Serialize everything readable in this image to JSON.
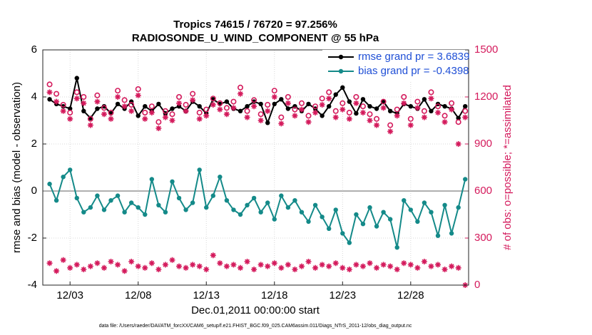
{
  "chart_data": {
    "type": "line",
    "title": "Tropics 74615 / 76720 = 97.256%",
    "subtitle": "RADIOSONDE_U_WIND_COMPONENT @ 55 hPa",
    "xlabel": "Dec.01,2011 00:00:00 start",
    "ylabel": "rmse and bias (model - observation)",
    "y2label": "# of obs: o=possible; *=assimilated",
    "footnote": "data file: /Users/raeder/DAI/ATM_forcXX/CAM6_setup/f.e21.FHIST_BGC.f09_025.CAM6assim.011/Diags_NTrS_2011-12/obs_diag_output.nc",
    "x": [
      0.5,
      1.0,
      1.5,
      2.0,
      2.5,
      3.0,
      3.5,
      4.0,
      4.5,
      5.0,
      5.5,
      6.0,
      6.5,
      7.0,
      7.5,
      8.0,
      8.5,
      9.0,
      9.5,
      10.0,
      10.5,
      11.0,
      11.5,
      12.0,
      12.5,
      13.0,
      13.5,
      14.0,
      14.5,
      15.0,
      15.5,
      16.0,
      16.5,
      17.0,
      17.5,
      18.0,
      18.5,
      19.0,
      19.5,
      20.0,
      20.5,
      21.0,
      21.5,
      22.0,
      22.5,
      23.0,
      23.5,
      24.0,
      24.5,
      25.0,
      25.5,
      26.0,
      26.5,
      27.0,
      27.5,
      28.0,
      28.5,
      29.0,
      29.5,
      30.0,
      30.5,
      31.0
    ],
    "xlim": [
      0,
      31.25
    ],
    "xticks": [
      {
        "value": 2,
        "label": "12/03"
      },
      {
        "value": 7,
        "label": "12/08"
      },
      {
        "value": 12,
        "label": "12/13"
      },
      {
        "value": 17,
        "label": "12/18"
      },
      {
        "value": 22,
        "label": "12/23"
      },
      {
        "value": 27,
        "label": "12/28"
      }
    ],
    "ylim": [
      -4,
      6
    ],
    "yticks": [
      -4,
      -2,
      0,
      2,
      4,
      6
    ],
    "y2lim": [
      0,
      1500
    ],
    "y2ticks": [
      0,
      300,
      600,
      900,
      1200,
      1500
    ],
    "grid": true,
    "legend": "upper right",
    "zero_line_color": "#b0b0b0",
    "series": [
      {
        "name": "rmse grand pr = 3.6839",
        "color": "#000000",
        "marker": "dot",
        "values": [
          3.9,
          3.7,
          3.6,
          3.5,
          4.8,
          3.4,
          3.1,
          3.5,
          3.6,
          3.3,
          3.7,
          3.5,
          3.8,
          3.2,
          3.6,
          3.4,
          3.7,
          3.3,
          3.5,
          3.6,
          3.4,
          3.8,
          3.6,
          3.3,
          3.9,
          3.7,
          3.8,
          3.5,
          3.4,
          3.6,
          3.8,
          3.7,
          2.9,
          3.7,
          3.9,
          3.5,
          3.6,
          3.4,
          3.7,
          3.5,
          3.2,
          3.6,
          4.1,
          4.4,
          3.8,
          3.3,
          3.9,
          3.6,
          3.5,
          3.8,
          3.4,
          3.3,
          3.7,
          3.6,
          3.5,
          3.9,
          3.4,
          3.7,
          3.6,
          3.5,
          3.1,
          3.6
        ]
      },
      {
        "name": "bias grand pr = -0.4398",
        "color": "#148a89",
        "marker": "dot",
        "values": [
          0.3,
          -0.4,
          0.6,
          0.9,
          -0.3,
          -0.9,
          -0.7,
          -0.2,
          -0.8,
          -0.4,
          -0.2,
          -0.9,
          -0.5,
          -0.7,
          -1.0,
          0.5,
          -0.6,
          -0.9,
          0.4,
          -0.3,
          -0.8,
          -0.5,
          0.9,
          -0.7,
          -0.2,
          0.6,
          -0.4,
          -0.8,
          -1.0,
          -0.6,
          -0.3,
          -0.9,
          -0.5,
          -1.2,
          -0.2,
          -0.7,
          -0.4,
          -0.9,
          -1.3,
          -0.6,
          -1.1,
          -1.6,
          -0.8,
          -1.8,
          -2.2,
          -1.0,
          -1.4,
          -0.7,
          -1.5,
          -0.9,
          -1.2,
          -2.4,
          -0.4,
          -0.8,
          -1.3,
          -0.5,
          -0.9,
          -1.9,
          -0.6,
          -1.8,
          -0.7,
          0.5
        ]
      },
      {
        "color": "#d41a5c",
        "axis": "y2",
        "marker": "circle",
        "values": [
          1280,
          1220,
          1150,
          1100,
          1230,
          1200,
          1060,
          1210,
          1130,
          1100,
          1240,
          1180,
          1150,
          1250,
          1100,
          1140,
          1040,
          1110,
          1090,
          1200,
          1150,
          1220,
          1100,
          1120,
          1190,
          1160,
          1130,
          1170,
          1260,
          1110,
          1180,
          1090,
          1150,
          1240,
          1070,
          1200,
          1120,
          1160,
          1080,
          1140,
          1190,
          1230,
          1110,
          1160,
          1100,
          1200,
          1140,
          1090,
          1060,
          1170,
          1020,
          1120,
          1200,
          1060,
          1170,
          1110,
          1230,
          1140,
          1080,
          1160,
          1040,
          1110
        ]
      },
      {
        "color": "#d41a5c",
        "axis": "y2",
        "marker": "star",
        "values": [
          1230,
          1170,
          1110,
          1060,
          1190,
          1160,
          1020,
          1170,
          1090,
          1060,
          1200,
          1140,
          1110,
          1210,
          1060,
          1100,
          1000,
          1070,
          1050,
          1160,
          1110,
          1180,
          1060,
          1080,
          1150,
          1120,
          1090,
          1130,
          1220,
          1070,
          1140,
          1050,
          1110,
          1200,
          1030,
          1160,
          1080,
          1120,
          1040,
          1100,
          1150,
          1190,
          1070,
          1120,
          1060,
          1160,
          1100,
          1050,
          1020,
          1130,
          980,
          1080,
          1160,
          1020,
          1130,
          1070,
          1190,
          1100,
          1040,
          1120,
          900,
          1070
        ]
      },
      {
        "color": "#d41a5c",
        "axis": "y2",
        "marker": "star",
        "values": [
          140,
          90,
          160,
          110,
          130,
          100,
          120,
          140,
          110,
          150,
          130,
          90,
          150,
          120,
          110,
          140,
          100,
          130,
          160,
          120,
          110,
          130,
          120,
          100,
          190,
          140,
          120,
          130,
          110,
          150,
          100,
          130,
          120,
          140,
          110,
          130,
          100,
          120,
          150,
          110,
          130,
          120,
          140,
          110,
          100,
          130,
          120,
          140,
          110,
          130,
          120,
          100,
          140,
          130,
          110,
          150,
          120,
          130,
          100,
          120,
          110,
          0
        ]
      }
    ]
  }
}
